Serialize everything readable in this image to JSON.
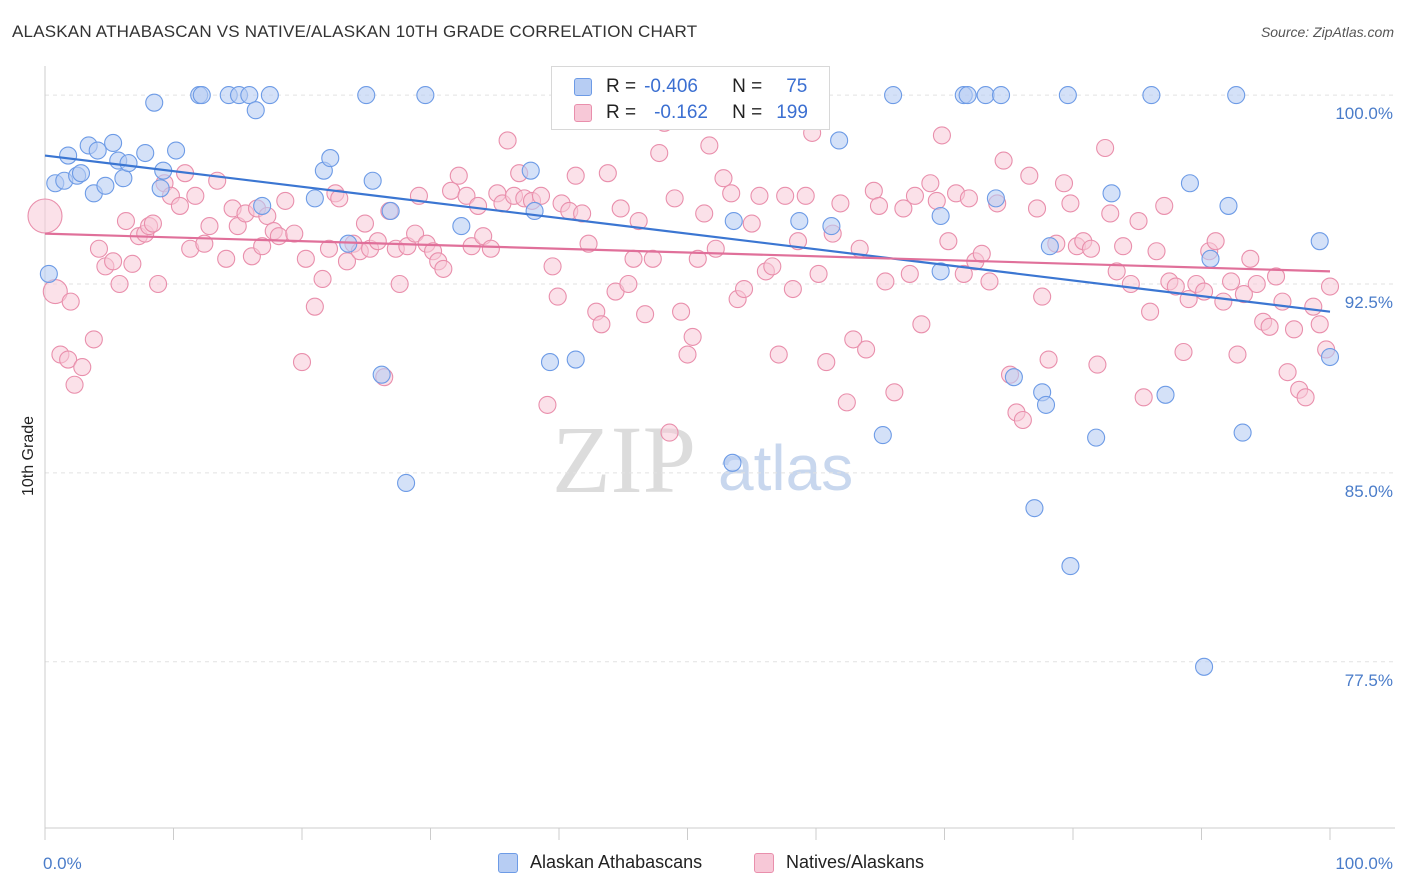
{
  "title": "ALASKAN ATHABASCAN VS NATIVE/ALASKAN 10TH GRADE CORRELATION CHART",
  "source": "Source: ZipAtlas.com",
  "watermark": {
    "zip": "ZIP",
    "atlas": "atlas"
  },
  "legend": {
    "rows": [
      {
        "r_label": "R =",
        "r_value": "-0.406",
        "n_label": "N =",
        "n_value": "75"
      },
      {
        "r_label": "R =",
        "r_value": "-0.162",
        "n_label": "N =",
        "n_value": "199"
      }
    ]
  },
  "chart_data": {
    "type": "scatter",
    "title": "ALASKAN ATHABASCAN VS NATIVE/ALASKAN 10TH GRADE CORRELATION CHART",
    "xlabel": "",
    "ylabel": "10th Grade",
    "x_tick_labels": [
      "0.0%",
      "100.0%"
    ],
    "y_tick_labels": [
      "100.0%",
      "92.5%",
      "85.0%",
      "77.5%"
    ],
    "y_ticks": [
      100.0,
      92.5,
      85.0,
      77.5
    ],
    "xlim": [
      0,
      100
    ],
    "ylim": [
      70.9,
      100.6
    ],
    "grid": true,
    "legend_position": "top-center",
    "colors": {
      "series1": "#6d9be6",
      "series1_fill": "#b7cdf3",
      "series2": "#e98fac",
      "series2_fill": "#f7c8d7",
      "trend1": "#3b76d2",
      "trend2": "#e0709a"
    },
    "series": [
      {
        "name": "Alaskan Athabascans",
        "trend": {
          "x": [
            0,
            100
          ],
          "y": [
            97.6,
            91.4
          ]
        },
        "points": [
          [
            0.3,
            92.9
          ],
          [
            0.8,
            96.5
          ],
          [
            1.5,
            96.6
          ],
          [
            1.8,
            97.6
          ],
          [
            2.5,
            96.8
          ],
          [
            2.8,
            96.9
          ],
          [
            3.4,
            98.0
          ],
          [
            3.8,
            96.1
          ],
          [
            4.1,
            97.8
          ],
          [
            4.7,
            96.4
          ],
          [
            5.3,
            98.1
          ],
          [
            5.7,
            97.4
          ],
          [
            6.1,
            96.7
          ],
          [
            6.5,
            97.3
          ],
          [
            7.8,
            97.7
          ],
          [
            8.5,
            99.7
          ],
          [
            9.0,
            96.3
          ],
          [
            9.2,
            97.0
          ],
          [
            10.2,
            97.8
          ],
          [
            12.0,
            100.0
          ],
          [
            12.2,
            100.0
          ],
          [
            14.3,
            100.0
          ],
          [
            15.1,
            100.0
          ],
          [
            15.9,
            100.0
          ],
          [
            16.4,
            99.4
          ],
          [
            16.9,
            95.6
          ],
          [
            17.5,
            100.0
          ],
          [
            21.0,
            95.9
          ],
          [
            21.7,
            97.0
          ],
          [
            22.2,
            97.5
          ],
          [
            23.6,
            94.1
          ],
          [
            25.0,
            100.0
          ],
          [
            25.5,
            96.6
          ],
          [
            26.2,
            88.9
          ],
          [
            26.9,
            95.4
          ],
          [
            28.1,
            84.6
          ],
          [
            29.6,
            100.0
          ],
          [
            32.4,
            94.8
          ],
          [
            37.8,
            97.0
          ],
          [
            38.1,
            95.4
          ],
          [
            39.3,
            89.4
          ],
          [
            41.3,
            89.5
          ],
          [
            53.5,
            85.4
          ],
          [
            53.6,
            95.0
          ],
          [
            58.7,
            95.0
          ],
          [
            61.2,
            94.8
          ],
          [
            61.8,
            98.2
          ],
          [
            65.2,
            86.5
          ],
          [
            66.0,
            100.0
          ],
          [
            69.7,
            95.2
          ],
          [
            69.7,
            93.0
          ],
          [
            71.5,
            100.0
          ],
          [
            71.8,
            100.0
          ],
          [
            73.2,
            100.0
          ],
          [
            74.0,
            95.9
          ],
          [
            74.4,
            100.0
          ],
          [
            75.4,
            88.8
          ],
          [
            77.0,
            83.6
          ],
          [
            77.6,
            88.2
          ],
          [
            77.9,
            87.7
          ],
          [
            78.2,
            94.0
          ],
          [
            79.6,
            100.0
          ],
          [
            79.8,
            81.3
          ],
          [
            81.8,
            86.4
          ],
          [
            83.0,
            96.1
          ],
          [
            86.1,
            100.0
          ],
          [
            87.2,
            88.1
          ],
          [
            89.1,
            96.5
          ],
          [
            90.2,
            77.3
          ],
          [
            90.7,
            93.5
          ],
          [
            92.7,
            100.0
          ],
          [
            92.1,
            95.6
          ],
          [
            93.2,
            86.6
          ],
          [
            99.2,
            94.2
          ],
          [
            100.0,
            89.6
          ]
        ]
      },
      {
        "name": "Natives/Alaskans",
        "trend": {
          "x": [
            0,
            100
          ],
          "y": [
            94.5,
            93.0
          ]
        },
        "points": [
          [
            0.0,
            95.2
          ],
          [
            0.8,
            92.2
          ],
          [
            1.2,
            89.7
          ],
          [
            1.8,
            89.5
          ],
          [
            2.0,
            91.8
          ],
          [
            2.3,
            88.5
          ],
          [
            2.9,
            89.2
          ],
          [
            3.8,
            90.3
          ],
          [
            4.2,
            93.9
          ],
          [
            4.7,
            93.2
          ],
          [
            5.3,
            93.4
          ],
          [
            5.8,
            92.5
          ],
          [
            6.3,
            95.0
          ],
          [
            6.8,
            93.3
          ],
          [
            7.3,
            94.4
          ],
          [
            7.8,
            94.5
          ],
          [
            8.1,
            94.8
          ],
          [
            8.4,
            94.9
          ],
          [
            8.8,
            92.5
          ],
          [
            9.3,
            96.5
          ],
          [
            9.8,
            96.0
          ],
          [
            10.5,
            95.6
          ],
          [
            10.9,
            96.9
          ],
          [
            11.3,
            93.9
          ],
          [
            11.7,
            96.0
          ],
          [
            12.4,
            94.1
          ],
          [
            12.8,
            94.8
          ],
          [
            13.4,
            96.6
          ],
          [
            14.1,
            93.5
          ],
          [
            14.6,
            95.5
          ],
          [
            15.0,
            94.8
          ],
          [
            15.6,
            95.3
          ],
          [
            16.1,
            93.6
          ],
          [
            16.5,
            95.5
          ],
          [
            16.9,
            94.0
          ],
          [
            17.3,
            95.2
          ],
          [
            17.8,
            94.6
          ],
          [
            18.2,
            94.4
          ],
          [
            18.7,
            95.8
          ],
          [
            19.4,
            94.5
          ],
          [
            20.0,
            89.4
          ],
          [
            20.3,
            93.5
          ],
          [
            21.0,
            91.6
          ],
          [
            21.6,
            92.7
          ],
          [
            22.1,
            93.9
          ],
          [
            22.6,
            96.1
          ],
          [
            22.9,
            95.9
          ],
          [
            23.5,
            93.4
          ],
          [
            24.0,
            94.1
          ],
          [
            24.5,
            93.8
          ],
          [
            24.9,
            94.9
          ],
          [
            25.3,
            93.9
          ],
          [
            25.9,
            94.2
          ],
          [
            26.4,
            88.8
          ],
          [
            26.8,
            95.4
          ],
          [
            27.3,
            93.9
          ],
          [
            27.6,
            92.5
          ],
          [
            28.2,
            94.0
          ],
          [
            28.8,
            94.5
          ],
          [
            29.1,
            96.0
          ],
          [
            29.7,
            94.1
          ],
          [
            30.2,
            93.8
          ],
          [
            30.6,
            93.4
          ],
          [
            31.0,
            93.1
          ],
          [
            31.6,
            96.2
          ],
          [
            32.2,
            96.8
          ],
          [
            32.8,
            96.0
          ],
          [
            33.2,
            94.0
          ],
          [
            33.7,
            95.6
          ],
          [
            34.1,
            94.4
          ],
          [
            34.7,
            93.9
          ],
          [
            35.2,
            96.1
          ],
          [
            35.6,
            95.7
          ],
          [
            36.0,
            98.2
          ],
          [
            36.5,
            96.0
          ],
          [
            36.9,
            96.9
          ],
          [
            37.3,
            95.9
          ],
          [
            37.9,
            95.8
          ],
          [
            38.6,
            96.0
          ],
          [
            39.1,
            87.7
          ],
          [
            39.5,
            93.2
          ],
          [
            39.9,
            92.0
          ],
          [
            40.2,
            95.7
          ],
          [
            40.8,
            95.4
          ],
          [
            41.3,
            96.8
          ],
          [
            41.8,
            95.3
          ],
          [
            42.3,
            94.1
          ],
          [
            42.9,
            91.4
          ],
          [
            43.3,
            90.9
          ],
          [
            43.8,
            96.9
          ],
          [
            44.4,
            92.2
          ],
          [
            44.8,
            95.5
          ],
          [
            45.4,
            92.5
          ],
          [
            45.8,
            93.5
          ],
          [
            46.2,
            95.0
          ],
          [
            46.7,
            91.3
          ],
          [
            47.3,
            93.5
          ],
          [
            47.8,
            97.7
          ],
          [
            48.2,
            98.9
          ],
          [
            48.6,
            86.6
          ],
          [
            49.0,
            95.9
          ],
          [
            49.5,
            91.4
          ],
          [
            50.0,
            89.7
          ],
          [
            50.4,
            90.4
          ],
          [
            50.8,
            93.5
          ],
          [
            51.3,
            95.3
          ],
          [
            51.7,
            98.0
          ],
          [
            52.2,
            93.9
          ],
          [
            52.8,
            96.7
          ],
          [
            53.4,
            96.1
          ],
          [
            53.9,
            91.9
          ],
          [
            54.4,
            92.3
          ],
          [
            55.0,
            94.9
          ],
          [
            55.6,
            96.0
          ],
          [
            56.1,
            93.0
          ],
          [
            56.6,
            93.2
          ],
          [
            57.1,
            89.7
          ],
          [
            57.6,
            96.0
          ],
          [
            58.2,
            92.3
          ],
          [
            58.6,
            94.2
          ],
          [
            59.2,
            96.0
          ],
          [
            59.7,
            98.5
          ],
          [
            60.2,
            92.9
          ],
          [
            60.8,
            89.4
          ],
          [
            61.3,
            94.5
          ],
          [
            61.9,
            95.7
          ],
          [
            62.4,
            87.8
          ],
          [
            62.9,
            90.3
          ],
          [
            63.4,
            93.9
          ],
          [
            63.9,
            89.9
          ],
          [
            64.5,
            96.2
          ],
          [
            64.9,
            95.6
          ],
          [
            65.4,
            92.6
          ],
          [
            66.1,
            88.2
          ],
          [
            66.8,
            95.5
          ],
          [
            67.3,
            92.9
          ],
          [
            67.7,
            96.0
          ],
          [
            68.2,
            90.9
          ],
          [
            68.9,
            96.5
          ],
          [
            69.4,
            95.8
          ],
          [
            69.8,
            98.4
          ],
          [
            70.3,
            94.2
          ],
          [
            70.9,
            96.1
          ],
          [
            71.5,
            92.9
          ],
          [
            71.9,
            95.9
          ],
          [
            72.4,
            93.4
          ],
          [
            72.9,
            93.7
          ],
          [
            73.5,
            92.6
          ],
          [
            74.1,
            95.7
          ],
          [
            74.6,
            97.4
          ],
          [
            75.1,
            88.9
          ],
          [
            75.6,
            87.4
          ],
          [
            76.1,
            87.1
          ],
          [
            76.6,
            96.8
          ],
          [
            77.2,
            95.5
          ],
          [
            77.6,
            92.0
          ],
          [
            78.1,
            89.5
          ],
          [
            78.7,
            94.1
          ],
          [
            79.3,
            96.5
          ],
          [
            79.8,
            95.7
          ],
          [
            80.3,
            94.0
          ],
          [
            80.8,
            94.2
          ],
          [
            81.4,
            93.9
          ],
          [
            81.9,
            89.3
          ],
          [
            82.5,
            97.9
          ],
          [
            82.9,
            95.3
          ],
          [
            83.4,
            93.0
          ],
          [
            83.9,
            94.0
          ],
          [
            84.5,
            92.5
          ],
          [
            85.1,
            95.0
          ],
          [
            85.5,
            88.0
          ],
          [
            86.0,
            91.4
          ],
          [
            86.5,
            93.8
          ],
          [
            87.1,
            95.6
          ],
          [
            87.5,
            92.6
          ],
          [
            88.0,
            92.4
          ],
          [
            88.6,
            89.8
          ],
          [
            89.0,
            91.9
          ],
          [
            89.6,
            92.5
          ],
          [
            90.2,
            92.2
          ],
          [
            90.6,
            93.8
          ],
          [
            91.1,
            94.2
          ],
          [
            91.7,
            91.8
          ],
          [
            92.3,
            92.6
          ],
          [
            92.8,
            89.7
          ],
          [
            93.3,
            92.1
          ],
          [
            93.8,
            93.5
          ],
          [
            94.3,
            92.5
          ],
          [
            94.8,
            91.0
          ],
          [
            95.3,
            90.8
          ],
          [
            95.8,
            92.8
          ],
          [
            96.3,
            91.8
          ],
          [
            96.7,
            89.0
          ],
          [
            97.2,
            90.7
          ],
          [
            97.6,
            88.3
          ],
          [
            98.1,
            88.0
          ],
          [
            98.7,
            91.6
          ],
          [
            99.2,
            90.9
          ],
          [
            99.7,
            89.9
          ],
          [
            100.0,
            92.4
          ]
        ]
      }
    ]
  },
  "bottom_legend": [
    "Alaskan Athabascans",
    "Natives/Alaskans"
  ]
}
